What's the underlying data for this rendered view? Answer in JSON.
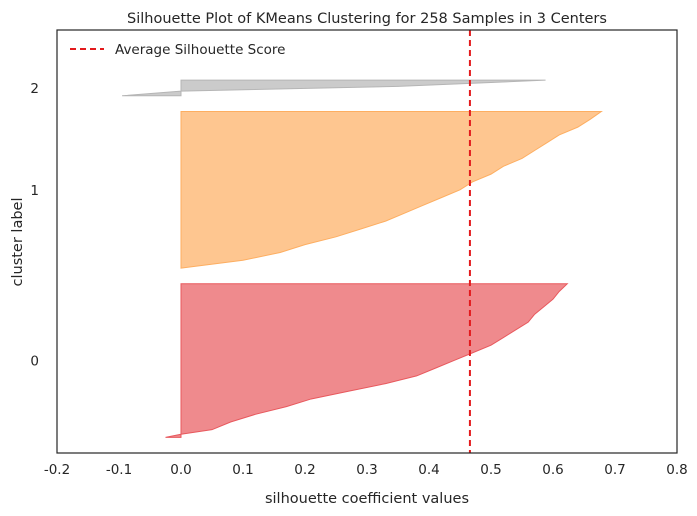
{
  "chart_data": {
    "type": "area",
    "title": "Silhouette Plot of KMeans Clustering for 258 Samples in 3 Centers",
    "xlabel": "silhouette coefficient values",
    "ylabel": "cluster label",
    "xlim": [
      -0.2,
      0.8
    ],
    "ylim": [
      0,
      270
    ],
    "x_ticks": [
      "-0.2",
      "-0.1",
      "0.0",
      "0.1",
      "0.2",
      "0.3",
      "0.4",
      "0.5",
      "0.6",
      "0.7",
      "0.8"
    ],
    "grid": false,
    "legend": {
      "position": "top-left",
      "entries": [
        "Average Silhouette Score"
      ]
    },
    "average_score": 0.466,
    "clusters": [
      {
        "label": "0",
        "color": "#e8585d",
        "y_range": [
          10,
          108
        ],
        "profile": [
          [
            0.0,
            -0.025
          ],
          [
            0.02,
            0.0
          ],
          [
            0.05,
            0.05
          ],
          [
            0.1,
            0.08
          ],
          [
            0.15,
            0.12
          ],
          [
            0.2,
            0.17
          ],
          [
            0.25,
            0.21
          ],
          [
            0.3,
            0.27
          ],
          [
            0.35,
            0.33
          ],
          [
            0.4,
            0.38
          ],
          [
            0.45,
            0.41
          ],
          [
            0.5,
            0.44
          ],
          [
            0.55,
            0.47
          ],
          [
            0.6,
            0.5
          ],
          [
            0.65,
            0.52
          ],
          [
            0.7,
            0.54
          ],
          [
            0.75,
            0.56
          ],
          [
            0.8,
            0.57
          ],
          [
            0.85,
            0.585
          ],
          [
            0.9,
            0.6
          ],
          [
            0.95,
            0.61
          ],
          [
            1.0,
            0.623
          ]
        ]
      },
      {
        "label": "1",
        "color": "#fdae61",
        "y_range": [
          118,
          218
        ],
        "profile": [
          [
            0.0,
            0.0
          ],
          [
            0.05,
            0.1
          ],
          [
            0.1,
            0.16
          ],
          [
            0.15,
            0.2
          ],
          [
            0.2,
            0.25
          ],
          [
            0.25,
            0.29
          ],
          [
            0.3,
            0.33
          ],
          [
            0.35,
            0.36
          ],
          [
            0.4,
            0.39
          ],
          [
            0.45,
            0.42
          ],
          [
            0.5,
            0.45
          ],
          [
            0.55,
            0.47
          ],
          [
            0.6,
            0.5
          ],
          [
            0.65,
            0.52
          ],
          [
            0.7,
            0.55
          ],
          [
            0.75,
            0.57
          ],
          [
            0.8,
            0.59
          ],
          [
            0.85,
            0.61
          ],
          [
            0.9,
            0.64
          ],
          [
            0.95,
            0.66
          ],
          [
            1.0,
            0.678
          ]
        ]
      },
      {
        "label": "2",
        "color": "#b5b5b5",
        "y_range": [
          228,
          238
        ],
        "profile": [
          [
            0.0,
            -0.095
          ],
          [
            0.3,
            0.0
          ],
          [
            0.6,
            0.35
          ],
          [
            0.85,
            0.5
          ],
          [
            1.0,
            0.588
          ]
        ]
      }
    ]
  }
}
